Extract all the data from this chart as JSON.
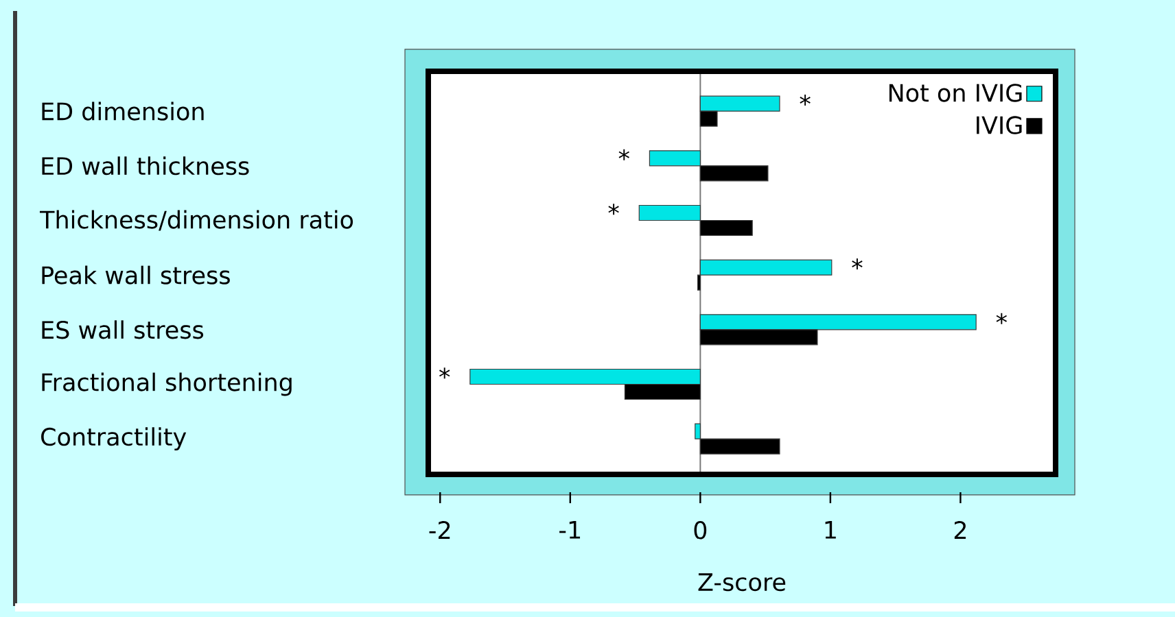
{
  "chart_data": {
    "type": "bar",
    "orientation": "horizontal",
    "xlabel": "Z-score",
    "categories": [
      "ED dimension",
      "ED wall thickness",
      "Thickness/dimension ratio",
      "Peak wall stress",
      "ES wall stress",
      "Fractional shortening",
      "Contractility"
    ],
    "series": [
      {
        "name": "Not on IVIG",
        "color": "#00e5e5",
        "values": [
          0.61,
          -0.39,
          -0.47,
          1.01,
          2.12,
          -1.77,
          -0.04
        ]
      },
      {
        "name": "IVIG",
        "color": "#000000",
        "values": [
          0.13,
          0.52,
          0.4,
          -0.02,
          0.9,
          -0.58,
          0.61
        ]
      }
    ],
    "xlim": [
      -2.07,
      2.71
    ],
    "xticks": [
      -2,
      -1,
      0,
      1,
      2
    ],
    "legend": "top right",
    "grid": false,
    "ref_lines": [
      {
        "axis": "x",
        "value": 0,
        "color": "#787878"
      }
    ],
    "annotations": [
      {
        "text": "*",
        "x": 0.61,
        "y": "ED dimension"
      },
      {
        "text": "*",
        "x": -0.39,
        "y": "ED wall thickness"
      },
      {
        "text": "*",
        "x": -0.47,
        "y": "Thickness/dimension ratio"
      },
      {
        "text": "*",
        "x": 1.01,
        "y": "Peak wall stress"
      },
      {
        "text": "*",
        "x": 2.12,
        "y": "ES wall stress"
      },
      {
        "text": "*",
        "x": -1.77,
        "y": "Fractional shortening"
      }
    ]
  }
}
